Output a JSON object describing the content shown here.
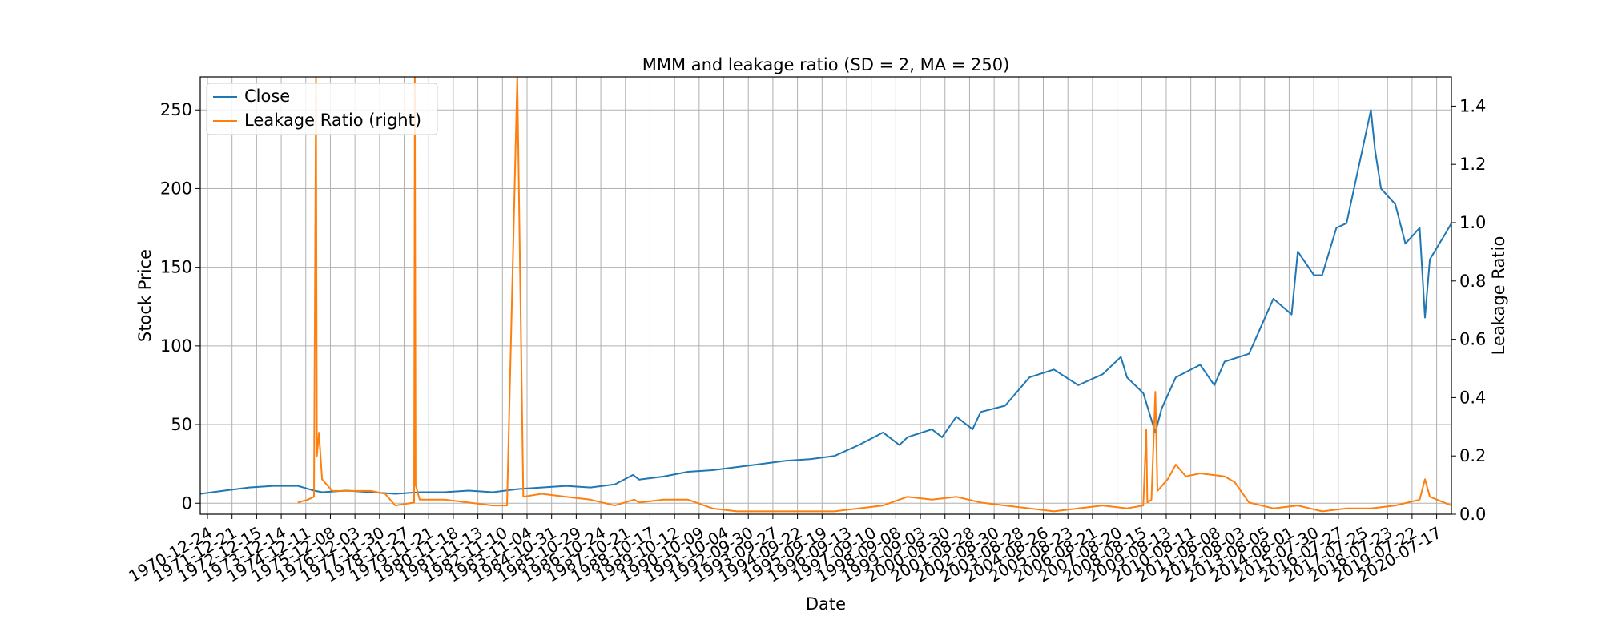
{
  "chart_data": {
    "type": "line",
    "title": "MMM and leakage ratio (SD = 2, MA = 250)",
    "xlabel": "Date",
    "ylabel_left": "Stock Price",
    "ylabel_right": "Leakage Ratio",
    "x_range": [
      "1970-01-02",
      "2021-04-20"
    ],
    "ylim_left": [
      -7,
      271
    ],
    "ylim_right": [
      0.0,
      1.5
    ],
    "yticks_left": [
      0,
      50,
      100,
      150,
      200,
      250
    ],
    "yticks_right": [
      "0.0",
      "0.2",
      "0.4",
      "0.6",
      "0.8",
      "1.0",
      "1.2",
      "1.4"
    ],
    "grid": true,
    "legend_placement": "top-left",
    "x_tick_labels": [
      "1970-12-24",
      "1971-12-21",
      "1972-12-15",
      "1973-12-14",
      "1974-12-11",
      "1975-12-08",
      "1976-12-03",
      "1977-11-30",
      "1978-11-27",
      "1979-11-21",
      "1980-11-18",
      "1981-11-13",
      "1982-11-10",
      "1983-11-04",
      "1984-10-31",
      "1985-10-29",
      "1986-10-24",
      "1987-10-21",
      "1988-10-17",
      "1989-10-12",
      "1990-10-09",
      "1991-10-04",
      "1992-09-30",
      "1993-09-27",
      "1994-09-22",
      "1995-09-19",
      "1996-09-13",
      "1997-09-10",
      "1998-09-08",
      "1999-09-03",
      "2000-08-30",
      "2001-08-28",
      "2002-08-30",
      "2003-08-28",
      "2004-08-26",
      "2005-08-23",
      "2006-08-21",
      "2007-08-20",
      "2008-08-15",
      "2009-08-13",
      "2010-08-11",
      "2011-08-08",
      "2012-08-03",
      "2013-08-05",
      "2014-08-01",
      "2015-07-30",
      "2016-07-27",
      "2017-07-25",
      "2018-07-23",
      "2019-07-22",
      "2020-07-17"
    ],
    "series": [
      {
        "name": "Close",
        "axis": "left",
        "color": "#1f77b4",
        "points": [
          [
            "1970-01-02",
            6
          ],
          [
            "1971-01-01",
            8
          ],
          [
            "1972-01-01",
            10
          ],
          [
            "1973-01-01",
            11
          ],
          [
            "1974-01-01",
            11
          ],
          [
            "1974-09-01",
            8
          ],
          [
            "1975-01-01",
            7
          ],
          [
            "1976-01-01",
            8
          ],
          [
            "1977-01-01",
            7
          ],
          [
            "1978-01-01",
            6
          ],
          [
            "1979-01-01",
            7
          ],
          [
            "1980-01-01",
            7
          ],
          [
            "1981-01-01",
            8
          ],
          [
            "1982-01-01",
            7
          ],
          [
            "1983-01-01",
            9
          ],
          [
            "1984-01-01",
            10
          ],
          [
            "1985-01-01",
            11
          ],
          [
            "1986-01-01",
            10
          ],
          [
            "1987-01-01",
            12
          ],
          [
            "1987-10-01",
            18
          ],
          [
            "1988-01-01",
            15
          ],
          [
            "1989-01-01",
            17
          ],
          [
            "1990-01-01",
            20
          ],
          [
            "1991-01-01",
            21
          ],
          [
            "1992-01-01",
            23
          ],
          [
            "1993-01-01",
            25
          ],
          [
            "1994-01-01",
            27
          ],
          [
            "1995-01-01",
            28
          ],
          [
            "1996-01-01",
            30
          ],
          [
            "1997-01-01",
            37
          ],
          [
            "1998-01-01",
            45
          ],
          [
            "1998-09-01",
            37
          ],
          [
            "1999-01-01",
            42
          ],
          [
            "2000-01-01",
            47
          ],
          [
            "2000-06-01",
            42
          ],
          [
            "2001-01-01",
            55
          ],
          [
            "2001-09-01",
            47
          ],
          [
            "2002-01-01",
            58
          ],
          [
            "2003-01-01",
            62
          ],
          [
            "2004-01-01",
            80
          ],
          [
            "2005-01-01",
            85
          ],
          [
            "2006-01-01",
            75
          ],
          [
            "2007-01-01",
            82
          ],
          [
            "2007-10-01",
            93
          ],
          [
            "2008-01-01",
            80
          ],
          [
            "2008-09-01",
            70
          ],
          [
            "2009-03-01",
            45
          ],
          [
            "2009-06-01",
            60
          ],
          [
            "2010-01-01",
            80
          ],
          [
            "2011-01-01",
            88
          ],
          [
            "2011-08-01",
            75
          ],
          [
            "2012-01-01",
            90
          ],
          [
            "2013-01-01",
            95
          ],
          [
            "2014-01-01",
            130
          ],
          [
            "2014-10-01",
            120
          ],
          [
            "2015-01-01",
            160
          ],
          [
            "2015-09-01",
            145
          ],
          [
            "2016-01-01",
            145
          ],
          [
            "2016-08-01",
            175
          ],
          [
            "2017-01-01",
            178
          ],
          [
            "2018-01-01",
            250
          ],
          [
            "2018-03-01",
            225
          ],
          [
            "2018-06-01",
            200
          ],
          [
            "2019-01-01",
            190
          ],
          [
            "2019-06-01",
            165
          ],
          [
            "2020-01-01",
            175
          ],
          [
            "2020-03-20",
            118
          ],
          [
            "2020-06-01",
            155
          ],
          [
            "2021-01-01",
            170
          ],
          [
            "2021-04-20",
            178
          ]
        ]
      },
      {
        "name": "Leakage Ratio (right)",
        "axis": "right",
        "color": "#ff7f0e",
        "points": [
          [
            "1974-01-01",
            0.04
          ],
          [
            "1974-06-01",
            0.05
          ],
          [
            "1974-09-01",
            0.06
          ],
          [
            "1974-10-01",
            1.5
          ],
          [
            "1974-10-15",
            0.2
          ],
          [
            "1974-11-15",
            0.28
          ],
          [
            "1975-01-01",
            0.12
          ],
          [
            "1975-06-01",
            0.08
          ],
          [
            "1976-01-01",
            0.08
          ],
          [
            "1977-01-01",
            0.08
          ],
          [
            "1977-08-01",
            0.07
          ],
          [
            "1978-01-01",
            0.03
          ],
          [
            "1978-10-10",
            0.04
          ],
          [
            "1978-10-20",
            1.5
          ],
          [
            "1978-11-01",
            0.1
          ],
          [
            "1979-01-01",
            0.05
          ],
          [
            "1980-01-01",
            0.05
          ],
          [
            "1981-01-01",
            0.04
          ],
          [
            "1982-01-01",
            0.03
          ],
          [
            "1982-08-01",
            0.03
          ],
          [
            "1983-01-01",
            1.5
          ],
          [
            "1983-04-01",
            0.06
          ],
          [
            "1984-01-01",
            0.07
          ],
          [
            "1985-01-01",
            0.06
          ],
          [
            "1986-01-01",
            0.05
          ],
          [
            "1987-01-01",
            0.03
          ],
          [
            "1987-10-19",
            0.05
          ],
          [
            "1988-01-01",
            0.04
          ],
          [
            "1989-01-01",
            0.05
          ],
          [
            "1990-01-01",
            0.05
          ],
          [
            "1991-01-01",
            0.02
          ],
          [
            "1992-01-01",
            0.01
          ],
          [
            "1993-01-01",
            0.01
          ],
          [
            "1994-01-01",
            0.01
          ],
          [
            "1995-01-01",
            0.01
          ],
          [
            "1996-01-01",
            0.01
          ],
          [
            "1997-01-01",
            0.02
          ],
          [
            "1998-01-01",
            0.03
          ],
          [
            "1999-01-01",
            0.06
          ],
          [
            "2000-01-01",
            0.05
          ],
          [
            "2001-01-01",
            0.06
          ],
          [
            "2002-01-01",
            0.04
          ],
          [
            "2003-01-01",
            0.03
          ],
          [
            "2004-01-01",
            0.02
          ],
          [
            "2005-01-01",
            0.01
          ],
          [
            "2006-01-01",
            0.02
          ],
          [
            "2007-01-01",
            0.03
          ],
          [
            "2008-01-01",
            0.02
          ],
          [
            "2008-09-01",
            0.03
          ],
          [
            "2008-10-15",
            0.29
          ],
          [
            "2008-11-01",
            0.04
          ],
          [
            "2009-01-01",
            0.05
          ],
          [
            "2009-03-01",
            0.42
          ],
          [
            "2009-04-01",
            0.08
          ],
          [
            "2009-09-01",
            0.12
          ],
          [
            "2010-01-01",
            0.17
          ],
          [
            "2010-06-01",
            0.13
          ],
          [
            "2011-01-01",
            0.14
          ],
          [
            "2012-01-01",
            0.13
          ],
          [
            "2012-06-01",
            0.11
          ],
          [
            "2013-01-01",
            0.04
          ],
          [
            "2014-01-01",
            0.02
          ],
          [
            "2015-01-01",
            0.03
          ],
          [
            "2016-01-01",
            0.01
          ],
          [
            "2017-01-01",
            0.02
          ],
          [
            "2018-01-01",
            0.02
          ],
          [
            "2019-01-01",
            0.03
          ],
          [
            "2020-01-01",
            0.05
          ],
          [
            "2020-03-20",
            0.12
          ],
          [
            "2020-06-01",
            0.06
          ],
          [
            "2021-01-01",
            0.04
          ],
          [
            "2021-04-20",
            0.03
          ]
        ]
      }
    ]
  }
}
